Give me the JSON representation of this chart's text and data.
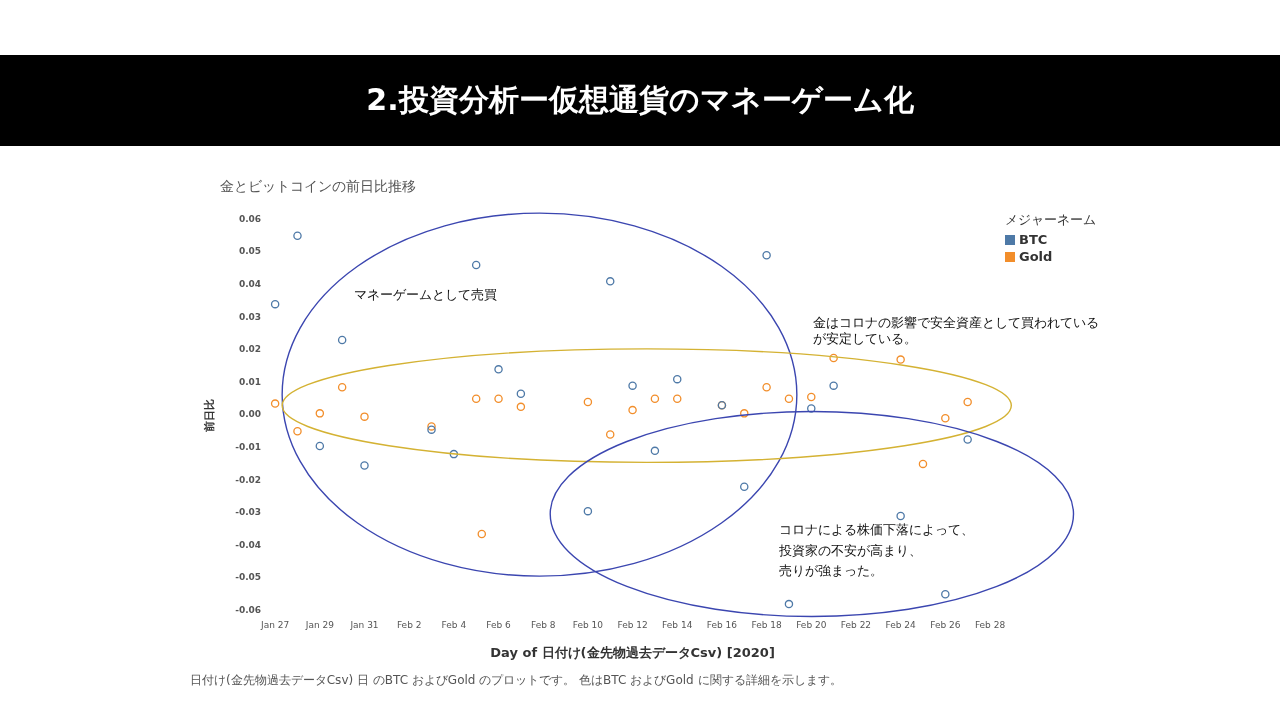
{
  "chart_data": {
    "type": "scatter",
    "title": "2.投資分析ー仮想通貨のマネーゲーム化",
    "subtitle": "金とビットコインの前日比推移",
    "xlabel": "Day of 日付け(金先物過去データCsv) [2020]",
    "ylabel": "前日比",
    "legend_title": "メジャーネーム",
    "annotations": [
      "マネーゲームとして売買",
      "金はコロナの影響で安全資産として買われているが安定している。",
      "コロナによる株価下落によって、",
      "投資家の不安が高まり、",
      "売りが強まった。",
      "日付け(金先物過去データCsv) 日 のBTC およびGold のプロットです。 色はBTC およびGold に関する詳細を示します。"
    ],
    "series": [
      {
        "name": "BTC",
        "color": "#4e79a7",
        "x": [
          "2020-01-27",
          "2020-01-28",
          "2020-01-29",
          "2020-01-30",
          "2020-01-31",
          "2020-02-03",
          "2020-02-04",
          "2020-02-05",
          "2020-02-06",
          "2020-02-07",
          "2020-02-10",
          "2020-02-11",
          "2020-02-12",
          "2020-02-13",
          "2020-02-14",
          "2020-02-16",
          "2020-02-17",
          "2020-02-18",
          "2020-02-19",
          "2020-02-20",
          "2020-02-21",
          "2020-02-24",
          "2020-02-26",
          "2020-02-27"
        ],
        "values": [
          0.034,
          0.055,
          -0.0095,
          0.023,
          -0.0155,
          -0.0045,
          -0.012,
          0.046,
          0.014,
          0.0065,
          -0.0295,
          0.041,
          0.009,
          -0.011,
          0.011,
          0.003,
          -0.022,
          0.049,
          -0.058,
          0.002,
          0.009,
          -0.031,
          -0.055,
          -0.0075
        ]
      },
      {
        "name": "Gold",
        "color": "#f28e2b",
        "x": [
          "2020-01-27",
          "2020-01-28",
          "2020-01-29",
          "2020-01-30",
          "2020-01-31",
          "2020-02-03",
          "2020-02-05",
          "2020-02-05T06:00",
          "2020-02-06",
          "2020-02-07",
          "2020-02-10",
          "2020-02-11",
          "2020-02-12",
          "2020-02-13",
          "2020-02-14",
          "2020-02-16",
          "2020-02-17",
          "2020-02-18",
          "2020-02-19",
          "2020-02-20",
          "2020-02-21",
          "2020-02-24",
          "2020-02-25",
          "2020-02-26",
          "2020-02-27"
        ],
        "values": [
          0.0035,
          -0.005,
          0.0005,
          0.0085,
          -0.0005,
          -0.0035,
          0.005,
          -0.0365,
          0.005,
          0.0025,
          0.004,
          -0.006,
          0.0015,
          0.005,
          0.005,
          0.003,
          0.0005,
          0.0085,
          0.005,
          0.0055,
          0.0175,
          0.017,
          -0.015,
          -0.001,
          0.004
        ]
      }
    ],
    "xlim": [
      "2020-01-27",
      "2020-02-28"
    ],
    "xticks": [
      {
        "value": "2020-01-27",
        "label": "Jan 27"
      },
      {
        "value": "2020-01-29",
        "label": "Jan 29"
      },
      {
        "value": "2020-01-31",
        "label": "Jan 31"
      },
      {
        "value": "2020-02-02",
        "label": "Feb 2"
      },
      {
        "value": "2020-02-04",
        "label": "Feb 4"
      },
      {
        "value": "2020-02-06",
        "label": "Feb 6"
      },
      {
        "value": "2020-02-08",
        "label": "Feb 8"
      },
      {
        "value": "2020-02-10",
        "label": "Feb 10"
      },
      {
        "value": "2020-02-12",
        "label": "Feb 12"
      },
      {
        "value": "2020-02-14",
        "label": "Feb 14"
      },
      {
        "value": "2020-02-16",
        "label": "Feb 16"
      },
      {
        "value": "2020-02-18",
        "label": "Feb 18"
      },
      {
        "value": "2020-02-20",
        "label": "Feb 20"
      },
      {
        "value": "2020-02-22",
        "label": "Feb 22"
      },
      {
        "value": "2020-02-24",
        "label": "Feb 24"
      },
      {
        "value": "2020-02-26",
        "label": "Feb 26"
      },
      {
        "value": "2020-02-28",
        "label": "Feb 28"
      }
    ],
    "ylim": [
      -0.06,
      0.06
    ],
    "yticks": [
      -0.06,
      -0.05,
      -0.04,
      -0.03,
      -0.02,
      -0.01,
      {
        "value": 0,
        "label": "0.00"
      },
      0.01,
      0.02,
      0.03,
      0.04,
      0.05,
      0.06
    ],
    "grid": false,
    "legend": "top right",
    "marker": "circle"
  }
}
